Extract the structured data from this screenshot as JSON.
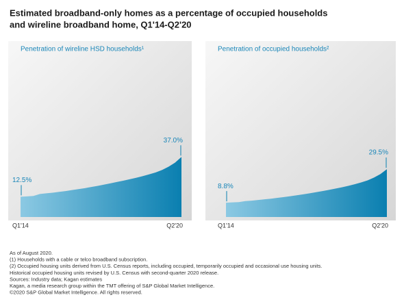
{
  "title": [
    "Estimated broadband-only homes as a percentage of occupied households",
    "and wireline broadband home, Q1'14-Q2'20"
  ],
  "notes": [
    "As of August 2020.",
    "(1) Households with a cable or telco broadband subscription.",
    "(2) Occupied housing units derived from U.S. Census reports, including occupied, temporarily occupied and occasional use housing units.",
    "Historical occupied housing units revised by U.S. Census with second-quarter 2020 release.",
    "Sources: Industry data; Kagan estimates",
    "Kagan, a media research group within the TMT offering of S&P Global Market Intelligence.",
    "©2020 S&P Global Market Intelligence. All rights reserved."
  ],
  "chart_data": [
    {
      "type": "area",
      "title": "Penetration of wireline HSD households¹",
      "color": "#0a7fb0",
      "categories": [
        "Q1'14",
        null,
        null,
        null,
        null,
        null,
        null,
        null,
        null,
        null,
        null,
        null,
        null,
        null,
        null,
        null,
        null,
        null,
        null,
        null,
        null,
        null,
        null,
        null,
        null,
        "Q2'20"
      ],
      "values": [
        12.5,
        12.7,
        13.0,
        14.2,
        14.6,
        15.0,
        15.5,
        16.0,
        16.6,
        17.2,
        17.8,
        18.5,
        19.2,
        20.0,
        20.8,
        21.6,
        22.4,
        23.3,
        24.2,
        25.2,
        26.3,
        27.5,
        29.0,
        31.0,
        33.5,
        37.0
      ],
      "value_labels": [
        "12.5%",
        null,
        null,
        null,
        null,
        null,
        null,
        null,
        null,
        null,
        null,
        null,
        null,
        null,
        null,
        null,
        null,
        null,
        null,
        null,
        null,
        null,
        null,
        null,
        null,
        "37.0%"
      ],
      "ylim": [
        0,
        100
      ]
    },
    {
      "type": "area",
      "title": "Penetration of occupied households²",
      "color": "#0a7fb0",
      "categories": [
        "Q1'14",
        null,
        null,
        null,
        null,
        null,
        null,
        null,
        null,
        null,
        null,
        null,
        null,
        null,
        null,
        null,
        null,
        null,
        null,
        null,
        null,
        null,
        null,
        null,
        null,
        "Q2'20"
      ],
      "values": [
        8.8,
        9.0,
        9.2,
        9.8,
        10.1,
        10.5,
        10.9,
        11.3,
        11.8,
        12.3,
        12.8,
        13.4,
        14.0,
        14.6,
        15.3,
        16.0,
        16.7,
        17.5,
        18.3,
        19.2,
        20.2,
        21.3,
        22.6,
        24.3,
        26.5,
        29.5
      ],
      "value_labels": [
        "8.8%",
        null,
        null,
        null,
        null,
        null,
        null,
        null,
        null,
        null,
        null,
        null,
        null,
        null,
        null,
        null,
        null,
        null,
        null,
        null,
        null,
        null,
        null,
        null,
        null,
        "29.5%"
      ],
      "ylim": [
        0,
        100
      ]
    }
  ]
}
